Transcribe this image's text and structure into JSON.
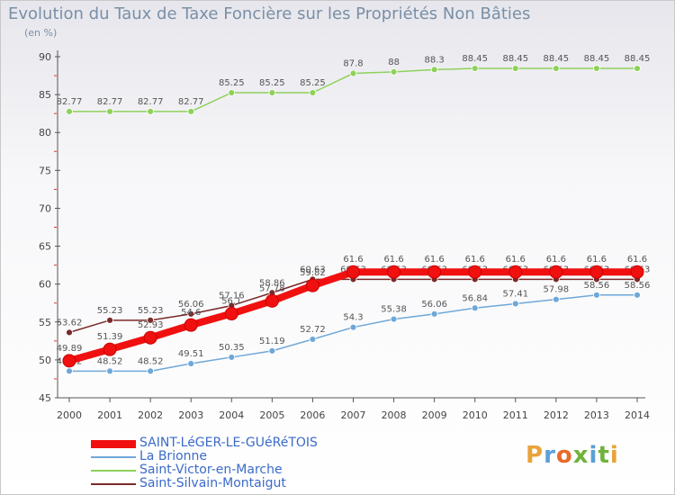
{
  "title": "Evolution du Taux de Taxe Foncière sur les Propriétés Non Bâties",
  "subtitle": "(en %)",
  "logo": {
    "text": "Proxiti",
    "colors": [
      "#e8a33a",
      "#5aa0d6",
      "#e86a2b",
      "#6fb33a",
      "#5aa0d6",
      "#6fb33a",
      "#e8a33a"
    ]
  },
  "chart_data": {
    "type": "line",
    "x": [
      "2000",
      "2001",
      "2002",
      "2003",
      "2004",
      "2005",
      "2006",
      "2007",
      "2008",
      "2009",
      "2010",
      "2011",
      "2012",
      "2013",
      "2014"
    ],
    "ylim": [
      45,
      90
    ],
    "yticks": [
      "45",
      "50",
      "55",
      "60",
      "65",
      "70",
      "75",
      "80",
      "85",
      "90"
    ],
    "grid": false,
    "legend_position": "bottom-left",
    "series": [
      {
        "name": "Saint-Victor-en-Marche",
        "color": "#8fd15a",
        "marker": "#8fd15a",
        "width": 1.5,
        "values": [
          82.77,
          82.77,
          82.77,
          82.77,
          85.25,
          85.25,
          85.25,
          87.8,
          88,
          88.3,
          88.45,
          88.45,
          88.45,
          88.45,
          88.45
        ],
        "labels": [
          "82.77",
          "82.77",
          "82.77",
          "82.77",
          "85.25",
          "85.25",
          "85.25",
          "87.8",
          "88",
          "88.3",
          "88.45",
          "88.45",
          "88.45",
          "88.45",
          "88.45"
        ]
      },
      {
        "name": "La Brionne",
        "color": "#6fa8d8",
        "marker": "#6fa8d8",
        "width": 1.5,
        "values": [
          48.52,
          48.52,
          48.52,
          49.51,
          50.35,
          51.19,
          52.72,
          54.3,
          55.38,
          56.06,
          56.84,
          57.41,
          57.98,
          58.56,
          58.56
        ],
        "labels": [
          "48.52",
          "48.52",
          "48.52",
          "49.51",
          "50.35",
          "51.19",
          "52.72",
          "54.3",
          "55.38",
          "56.06",
          "56.84",
          "57.41",
          "57.98",
          "58.56",
          "58.56"
        ]
      },
      {
        "name": "Saint-Silvain-Montaigut",
        "color": "#7a2a2a",
        "marker": "#7a2a2a",
        "width": 1.5,
        "values": [
          53.62,
          55.23,
          55.23,
          56.06,
          57.16,
          58.86,
          60.63,
          60.63,
          60.63,
          60.63,
          60.63,
          60.63,
          60.63,
          60.63,
          60.63
        ],
        "labels": [
          "53.62",
          "55.23",
          "55.23",
          "56.06",
          "57.16",
          "58.86",
          "60.63",
          "60.63",
          "60.63",
          "60.63",
          "60.63",
          "60.63",
          "60.63",
          "60.63",
          "60.63"
        ]
      },
      {
        "name": "SAINT-LéGER-LE-GUéRéTOIS",
        "color": "#f01010",
        "marker": "#f01010",
        "width": 8,
        "values": [
          49.89,
          51.39,
          52.93,
          54.6,
          56.1,
          57.78,
          59.82,
          61.6,
          61.6,
          61.6,
          61.6,
          61.6,
          61.6,
          61.6,
          61.6
        ],
        "labels": [
          "49.89",
          "51.39",
          "52.93",
          "54.6",
          "56.1",
          "57.78",
          "59.82",
          "61.6",
          "61.6",
          "61.6",
          "61.6",
          "61.6",
          "61.6",
          "61.6",
          "61.6"
        ]
      }
    ],
    "legend_order": [
      "SAINT-LéGER-LE-GUéRéTOIS",
      "La Brionne",
      "Saint-Victor-en-Marche",
      "Saint-Silvain-Montaigut"
    ]
  }
}
